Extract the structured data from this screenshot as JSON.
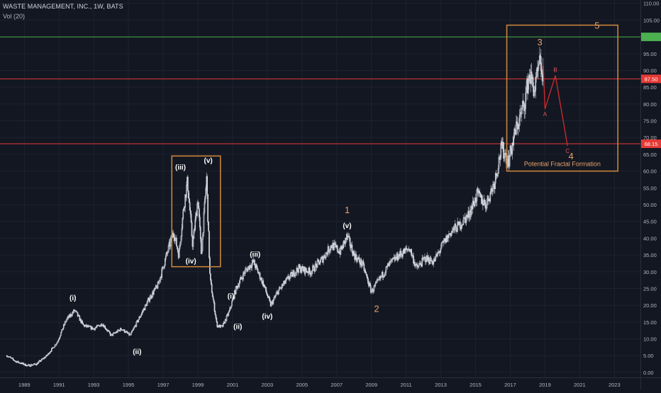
{
  "header": {
    "ticker_line": "WASTE MANAGEMENT, INC., 1W, BATS",
    "volume_label": "Vol (20)"
  },
  "colors": {
    "background": "#131722",
    "candle": "#d1d4dc",
    "grid": "#1e2230",
    "axis_text": "#b2b5be",
    "wave_orange": "#e8a36a",
    "box_orange": "#c8843a",
    "red_line": "#e53935",
    "green_line": "#4caf50"
  },
  "chart_data": {
    "type": "candlestick",
    "title": "WASTE MANAGEMENT, INC., 1W, BATS",
    "xlabel": "",
    "ylabel": "",
    "xlim": [
      1987.6,
      2024.5
    ],
    "ylim": [
      -1.5,
      111
    ],
    "x_ticks": [
      "1989",
      "1991",
      "1993",
      "1995",
      "1997",
      "1999",
      "2001",
      "2003",
      "2005",
      "2007",
      "2009",
      "2011",
      "2013",
      "2015",
      "2017",
      "2019",
      "2021",
      "2023"
    ],
    "y_ticks": [
      "0.00",
      "5.00",
      "10.00",
      "15.00",
      "20.00",
      "25.00",
      "30.00",
      "35.00",
      "40.00",
      "45.00",
      "50.00",
      "55.00",
      "60.00",
      "65.00",
      "70.00",
      "75.00",
      "80.00",
      "85.00",
      "90.00",
      "95.00",
      "105.00",
      "110.00"
    ],
    "grid": true,
    "price_path": [
      [
        1988.0,
        5.0
      ],
      [
        1988.5,
        3.3
      ],
      [
        1989.2,
        2.0
      ],
      [
        1989.7,
        2.5
      ],
      [
        1990.3,
        5.0
      ],
      [
        1990.9,
        9.0
      ],
      [
        1991.4,
        15.5
      ],
      [
        1991.9,
        18.5
      ],
      [
        1992.4,
        14.0
      ],
      [
        1993.0,
        13.0
      ],
      [
        1993.5,
        14.5
      ],
      [
        1994.0,
        11.0
      ],
      [
        1994.6,
        13.0
      ],
      [
        1995.1,
        11.0
      ],
      [
        1995.6,
        16.0
      ],
      [
        1996.2,
        22.0
      ],
      [
        1996.7,
        26.0
      ],
      [
        1997.2,
        35.0
      ],
      [
        1997.6,
        42.0
      ],
      [
        1997.9,
        35.0
      ],
      [
        1998.2,
        50.0
      ],
      [
        1998.4,
        57.0
      ],
      [
        1998.7,
        38.0
      ],
      [
        1999.0,
        52.0
      ],
      [
        1999.2,
        35.0
      ],
      [
        1999.5,
        58.0
      ],
      [
        1999.7,
        28.0
      ],
      [
        2000.1,
        14.0
      ],
      [
        2000.4,
        13.5
      ],
      [
        2000.8,
        18.0
      ],
      [
        2001.2,
        25.0
      ],
      [
        2001.7,
        30.0
      ],
      [
        2002.2,
        33.0
      ],
      [
        2002.8,
        26.0
      ],
      [
        2003.2,
        20.0
      ],
      [
        2003.6,
        24.0
      ],
      [
        2004.2,
        28.0
      ],
      [
        2004.8,
        31.0
      ],
      [
        2005.5,
        30.0
      ],
      [
        2006.2,
        34.0
      ],
      [
        2006.7,
        38.0
      ],
      [
        2007.2,
        36.0
      ],
      [
        2007.6,
        40.5
      ],
      [
        2008.0,
        35.0
      ],
      [
        2008.5,
        32.0
      ],
      [
        2009.0,
        24.0
      ],
      [
        2009.5,
        28.0
      ],
      [
        2010.0,
        32.0
      ],
      [
        2010.6,
        35.0
      ],
      [
        2011.2,
        37.0
      ],
      [
        2011.6,
        31.0
      ],
      [
        2012.1,
        34.0
      ],
      [
        2012.6,
        33.0
      ],
      [
        2013.1,
        38.0
      ],
      [
        2013.6,
        42.0
      ],
      [
        2014.1,
        44.0
      ],
      [
        2014.6,
        47.0
      ],
      [
        2015.1,
        53.0
      ],
      [
        2015.6,
        50.0
      ],
      [
        2016.1,
        57.0
      ],
      [
        2016.5,
        67.0
      ],
      [
        2016.9,
        63.0
      ],
      [
        2017.3,
        72.0
      ],
      [
        2017.8,
        80.0
      ],
      [
        2018.1,
        89.0
      ],
      [
        2018.4,
        84.0
      ],
      [
        2018.7,
        92.0
      ],
      [
        2018.9,
        88.0
      ]
    ],
    "horizontal_lines": [
      {
        "price": 100,
        "label": "",
        "color": "#4caf50"
      },
      {
        "price": 87.5,
        "label": "87.50",
        "color": "#e53935"
      },
      {
        "price": 68.15,
        "label": "68.15",
        "color": "#e53935"
      }
    ],
    "projection_abc": [
      {
        "x": 2018.9,
        "y": 91.5,
        "label": ""
      },
      {
        "x": 2019.0,
        "y": 78.5,
        "label": "A"
      },
      {
        "x": 2019.6,
        "y": 88.5,
        "label": "B"
      },
      {
        "x": 2020.3,
        "y": 67.5,
        "label": "C"
      }
    ],
    "boxes": [
      {
        "x1": 1997.5,
        "x2": 2000.3,
        "y1": 31.5,
        "y2": 64.5,
        "label": ""
      },
      {
        "x1": 2016.8,
        "x2": 2023.2,
        "y1": 60.0,
        "y2": 103.5,
        "label": "Potential Fractal Formation"
      }
    ],
    "annotations": [
      {
        "text": "(i)",
        "x": 1991.8,
        "y": 21.5,
        "color": "white"
      },
      {
        "text": "(ii)",
        "x": 1995.5,
        "y": 5.5,
        "color": "white"
      },
      {
        "text": "(iii)",
        "x": 1998.0,
        "y": 60.5,
        "color": "white"
      },
      {
        "text": "(iv)",
        "x": 1998.6,
        "y": 32.5,
        "color": "white"
      },
      {
        "text": "(v)",
        "x": 1999.6,
        "y": 62.5,
        "color": "white"
      },
      {
        "text": "(i)",
        "x": 2000.9,
        "y": 22.0,
        "color": "white"
      },
      {
        "text": "(ii)",
        "x": 2001.3,
        "y": 13.0,
        "color": "white"
      },
      {
        "text": "(iii)",
        "x": 2002.3,
        "y": 34.5,
        "color": "white"
      },
      {
        "text": "(iv)",
        "x": 2003.0,
        "y": 16.0,
        "color": "white"
      },
      {
        "text": "(v)",
        "x": 2007.6,
        "y": 43.0,
        "color": "white"
      },
      {
        "text": "1",
        "x": 2007.6,
        "y": 47.5,
        "color": "orange"
      },
      {
        "text": "2",
        "x": 2009.3,
        "y": 18.0,
        "color": "orange"
      },
      {
        "text": "3",
        "x": 2018.7,
        "y": 97.5,
        "color": "orange"
      },
      {
        "text": "4",
        "x": 2020.5,
        "y": 63.5,
        "color": "orange"
      },
      {
        "text": "5",
        "x": 2022.0,
        "y": 102.5,
        "color": "orange"
      }
    ]
  }
}
